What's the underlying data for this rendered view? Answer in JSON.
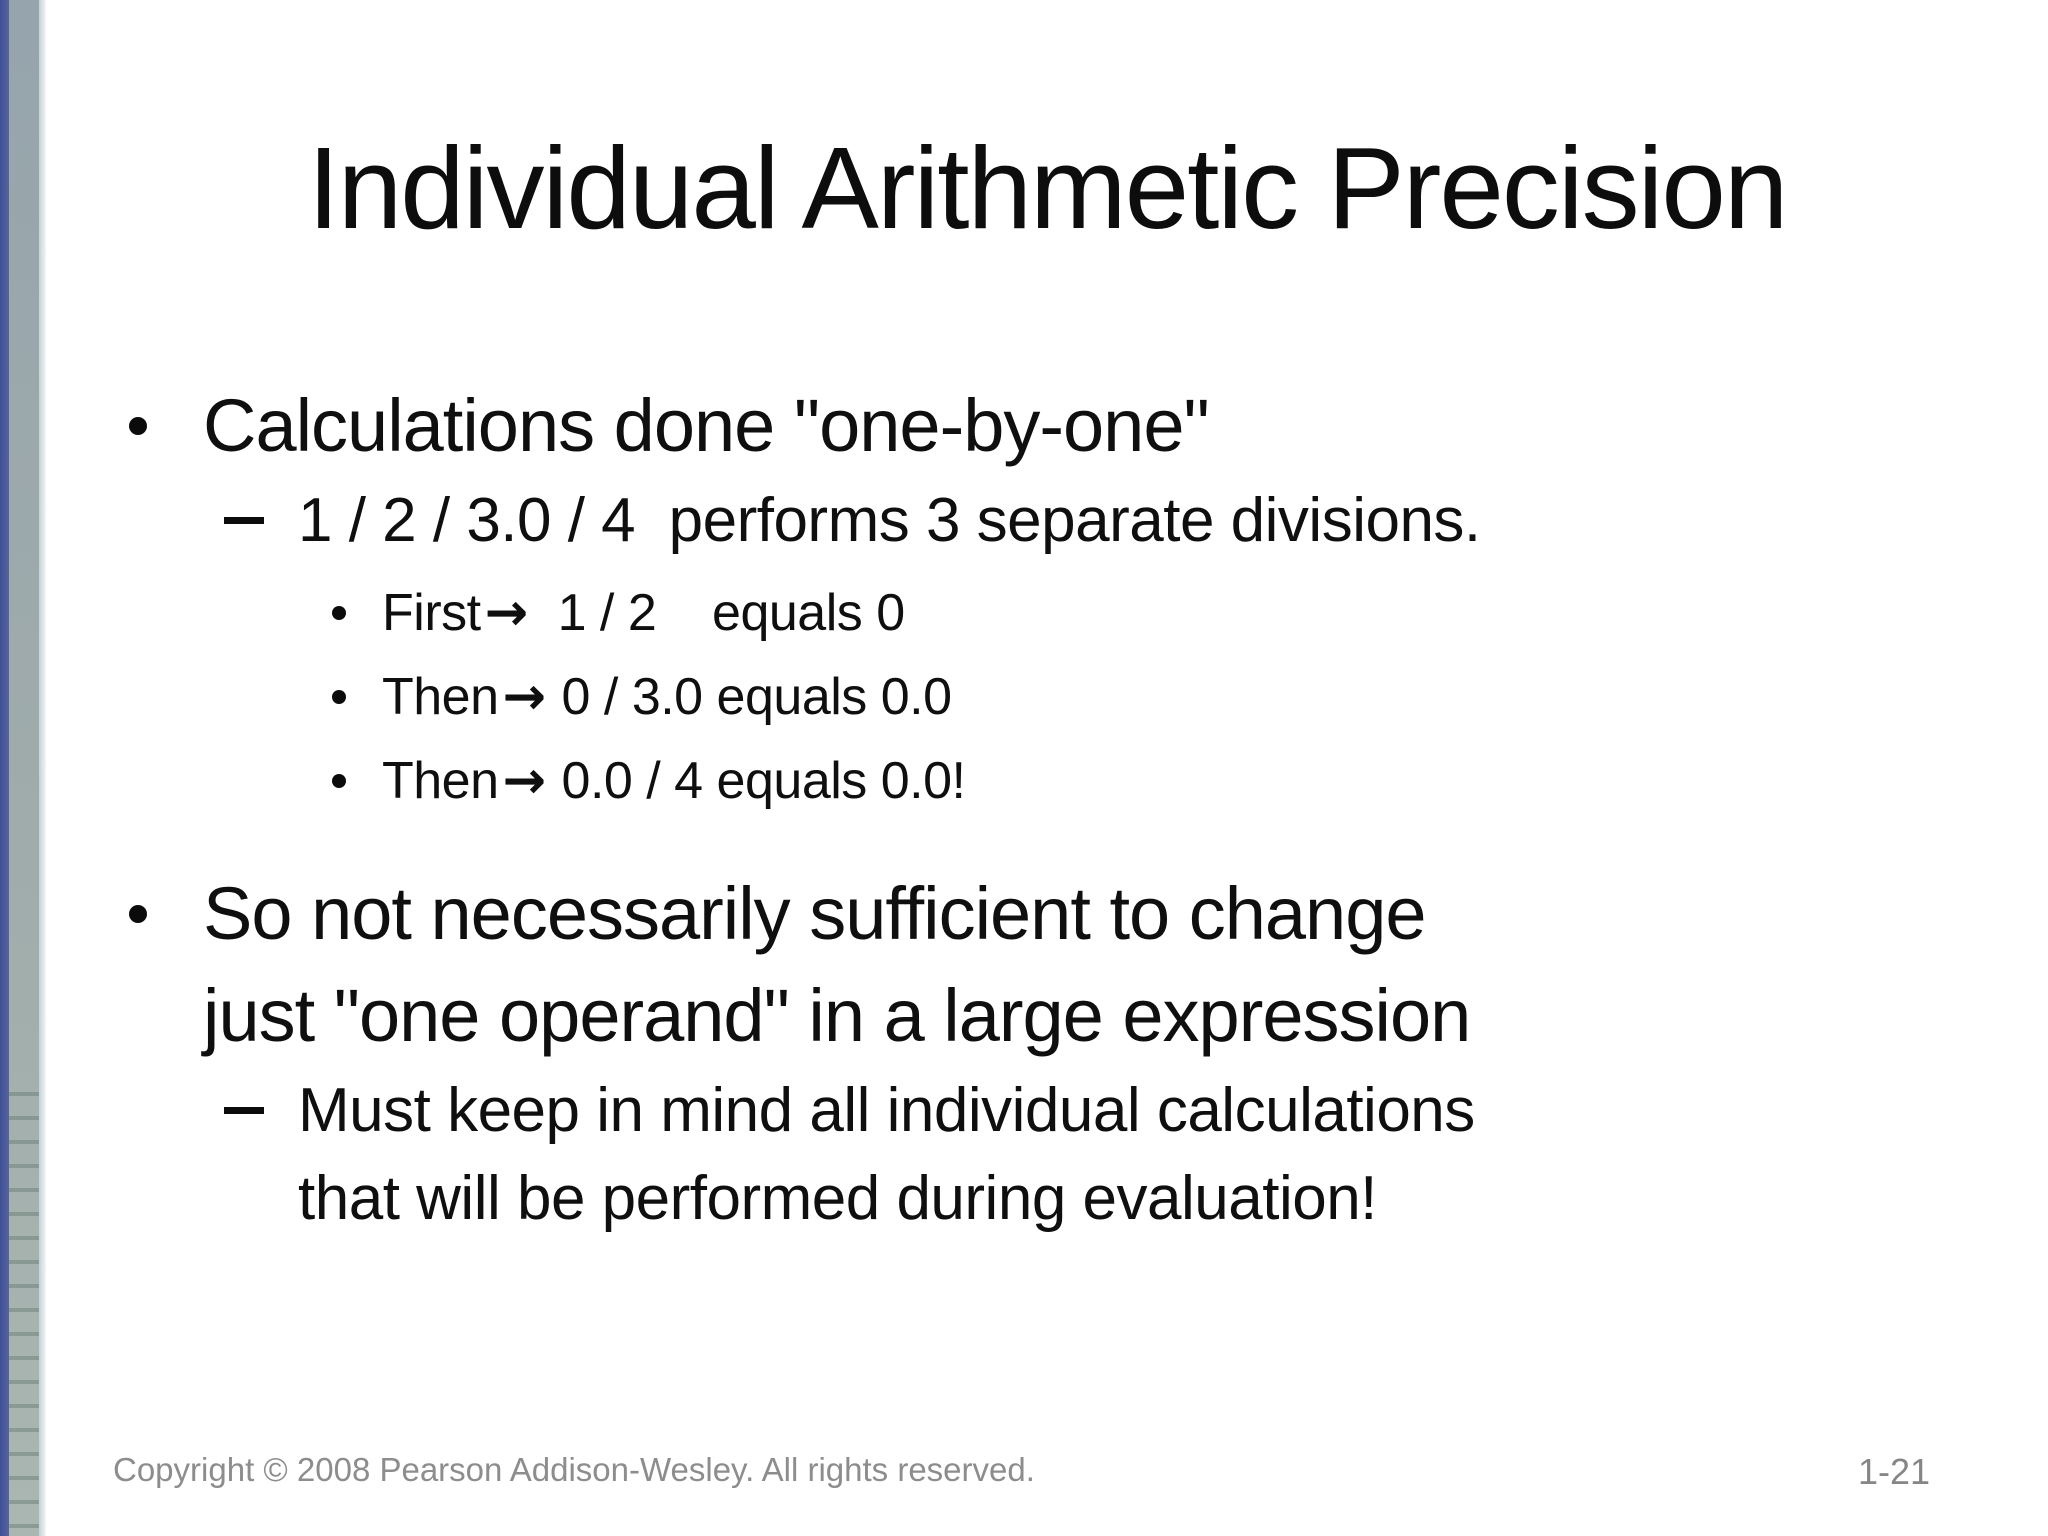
{
  "slide": {
    "title": "Individual Arithmetic Precision",
    "content": {
      "items": [
        {
          "level": 1,
          "marker": "round-bullet",
          "text": "Calculations done \"one-by-one\""
        },
        {
          "level": 2,
          "marker": "dash-bullet",
          "text": "1 / 2 / 3.0 / 4  performs 3 separate divisions."
        },
        {
          "level": 3,
          "marker": "round-bullet",
          "pre": "First",
          "arrow": "→",
          "post": "  1 / 2    equals 0"
        },
        {
          "level": 3,
          "marker": "round-bullet",
          "pre": "Then",
          "arrow": "→",
          "post": " 0 / 3.0 equals 0.0"
        },
        {
          "level": 3,
          "marker": "round-bullet",
          "pre": "Then",
          "arrow": "→",
          "post": " 0.0 / 4 equals 0.0!"
        },
        {
          "level": 1,
          "marker": "round-bullet",
          "text": "So not necessarily sufficient to change\njust \"one operand\" in a large expression"
        },
        {
          "level": 2,
          "marker": "dash-bullet",
          "text": "Must keep in mind all individual calculations\nthat will be performed during evaluation!"
        }
      ]
    },
    "footer": {
      "copyright": "Copyright © 2008 Pearson Addison-Wesley. All rights reserved.",
      "page_number": "1-21"
    },
    "colors": {
      "accent_bar_blue": "#4b5a9b",
      "sidebar_gray": "#a0acab",
      "sidebar_ruled_line": "#647a72",
      "sidebar_edge_highlight": "#c6d1d6",
      "text": "#0f0f0f",
      "footer_gray": "#8d8d8d",
      "background": "#ffffff"
    }
  }
}
